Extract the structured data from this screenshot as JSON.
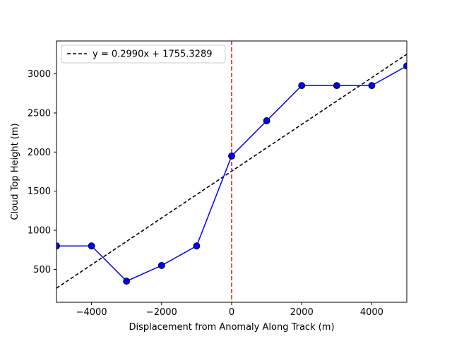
{
  "chart_data": {
    "type": "line",
    "xlabel": "Displacement from Anomaly Along Track (m)",
    "ylabel": "Cloud Top Height (m)",
    "xlim": [
      -5000,
      5000
    ],
    "ylim": [
      80,
      3420
    ],
    "x_ticks": [
      -4000,
      -2000,
      0,
      2000,
      4000
    ],
    "x_tick_labels": [
      "−4000",
      "−2000",
      "0",
      "2000",
      "4000"
    ],
    "y_ticks": [
      500,
      1000,
      1500,
      2000,
      2500,
      3000
    ],
    "y_tick_labels": [
      "500",
      "1000",
      "1500",
      "2000",
      "2500",
      "3000"
    ],
    "grid": false,
    "series": [
      {
        "style": "line-markers",
        "color": "#0000ff",
        "x": [
          -5000,
          -4000,
          -3000,
          -2000,
          -1000,
          0,
          1000,
          2000,
          3000,
          4000,
          5000
        ],
        "y": [
          800,
          800,
          350,
          550,
          800,
          1950,
          2400,
          2850,
          2850,
          2850,
          3100
        ]
      },
      {
        "name": "y = 0.2990x + 1755.3289",
        "style": "dashed",
        "color": "#000000",
        "slope": 0.299,
        "intercept": 1755.3289
      }
    ],
    "vertical_line": {
      "x": 0,
      "color": "#d62728",
      "style": "dashed"
    },
    "legend": {
      "position": "top-left",
      "entries": [
        "y = 0.2990x + 1755.3289"
      ]
    }
  }
}
